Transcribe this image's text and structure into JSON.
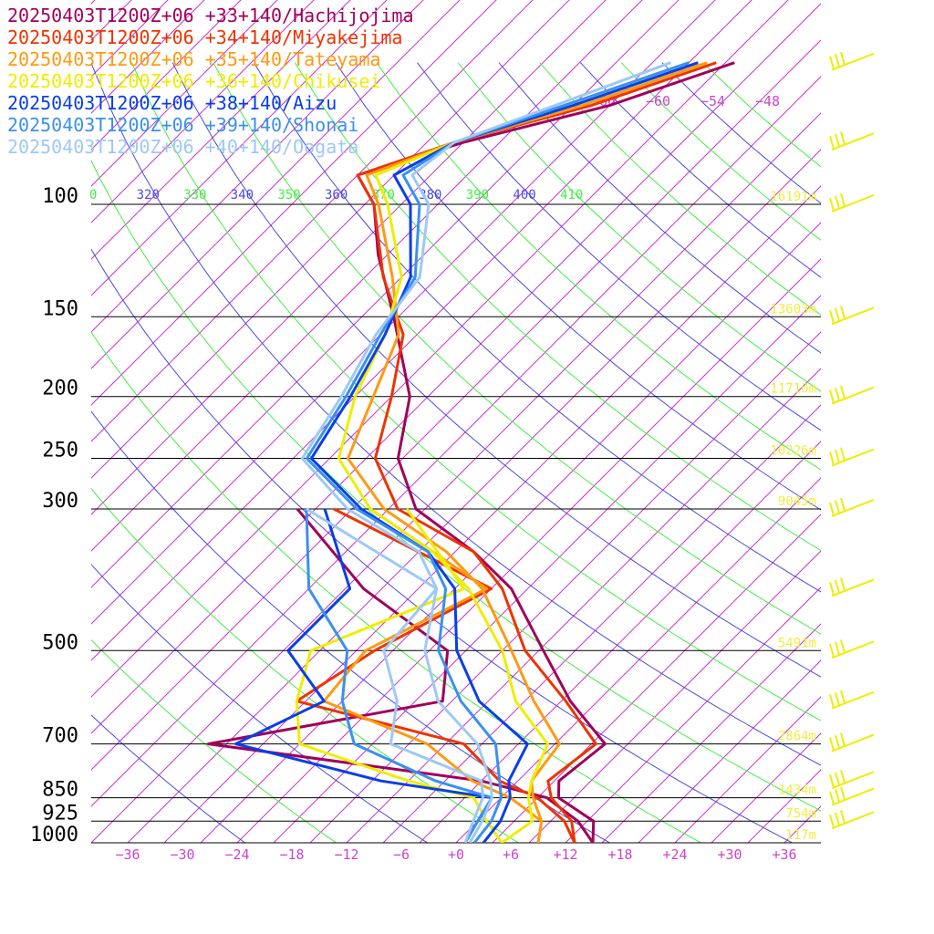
{
  "legend": [
    {
      "label": "20250403T1200Z+06 +33+140/Hachijojima",
      "color": "#a0005a"
    },
    {
      "label": "20250403T1200Z+06 +34+140/Miyakejima",
      "color": "#ee3300"
    },
    {
      "label": "20250403T1200Z+06 +35+140/Tateyama",
      "color": "#ff9a10"
    },
    {
      "label": "20250403T1200Z+06 +36+140/Chikusei",
      "color": "#eeee00"
    },
    {
      "label": "20250403T1200Z+06 +38+140/Aizu",
      "color": "#0a3ee8"
    },
    {
      "label": "20250403T1200Z+06 +39+140/Shonai",
      "color": "#3a90f0"
    },
    {
      "label": "20250403T1200Z+06 +40+140/Oogata",
      "color": "#9ec8f5"
    }
  ],
  "chart_data": {
    "type": "line",
    "title": "",
    "xlabel": "",
    "ylabel": "",
    "xlim": [
      -40,
      40
    ],
    "ylim": [
      1000,
      100
    ],
    "y_scale": "log-pressure",
    "skew": "temperature lines skewed 45 degrees",
    "pressure_levels": [
      {
        "p": 100,
        "label": "100",
        "height": "16191m"
      },
      {
        "p": 150,
        "label": "150",
        "height": "13603m"
      },
      {
        "p": 200,
        "label": "200",
        "height": "11710m"
      },
      {
        "p": 250,
        "label": "250",
        "height": "10226m"
      },
      {
        "p": 300,
        "label": "300",
        "height": "9045m"
      },
      {
        "p": 500,
        "label": "500",
        "height": "5491m"
      },
      {
        "p": 700,
        "label": "700",
        "height": "2864m"
      },
      {
        "p": 850,
        "label": "850",
        "height": "1434m"
      },
      {
        "p": 925,
        "label": "925",
        "height": "754m"
      },
      {
        "p": 1000,
        "label": "1000",
        "height": "117m"
      }
    ],
    "x_ticks": [
      -36,
      -30,
      -24,
      -18,
      -12,
      -6,
      0,
      6,
      12,
      18,
      24,
      30,
      36
    ],
    "x_tick_labels": [
      "−36",
      "−30",
      "−24",
      "−18",
      "−12",
      "−6",
      "+0",
      "+6",
      "+12",
      "+18",
      "+24",
      "+30",
      "+36"
    ],
    "theta_labels": [
      "0",
      "320",
      "330",
      "340",
      "350",
      "360",
      "370",
      "380",
      "390",
      "400",
      "410"
    ],
    "top_temp_labels": [
      "−66",
      "−60",
      "−54",
      "−48"
    ],
    "series": [
      {
        "name": "20250403T1200Z+06 +33+140/Hachijojima",
        "color": "#a0005a",
        "temperature": [
          [
            1000,
            15.0
          ],
          [
            925,
            12.7
          ],
          [
            850,
            6.3
          ],
          [
            800,
            4.5
          ],
          [
            700,
            5.5
          ],
          [
            600,
            -3.0
          ],
          [
            500,
            -11.5
          ],
          [
            400,
            -21.8
          ],
          [
            350,
            -30.0
          ],
          [
            300,
            -41.0
          ],
          [
            250,
            -48.5
          ],
          [
            200,
            -54.0
          ],
          [
            150,
            -64.5
          ],
          [
            120,
            -73.0
          ],
          [
            100,
            -79.0
          ],
          [
            90,
            -84.0
          ],
          [
            80,
            -76.0
          ],
          [
            70,
            -64.0
          ],
          [
            60,
            -55.0
          ]
        ],
        "dewpoint": [
          [
            1000,
            15.0
          ],
          [
            925,
            11.0
          ],
          [
            850,
            5.0
          ],
          [
            800,
            -4.0
          ],
          [
            700,
            -38.0
          ],
          [
            600,
            -17.0
          ],
          [
            500,
            -22.0
          ],
          [
            400,
            -38.0
          ],
          [
            300,
            -54.0
          ]
        ]
      },
      {
        "name": "20250403T1200Z+06 +34+140/Miyakejima",
        "color": "#ee3300",
        "temperature": [
          [
            1000,
            13.0
          ],
          [
            925,
            10.3
          ],
          [
            850,
            5.5
          ],
          [
            800,
            3.3
          ],
          [
            700,
            4.5
          ],
          [
            600,
            -3.5
          ],
          [
            500,
            -13.5
          ],
          [
            400,
            -22.8
          ],
          [
            350,
            -30.0
          ],
          [
            300,
            -43.0
          ],
          [
            250,
            -51.0
          ],
          [
            200,
            -56.0
          ],
          [
            160,
            -61.5
          ],
          [
            130,
            -70.0
          ],
          [
            100,
            -79.0
          ],
          [
            90,
            -84.0
          ],
          [
            80,
            -77.0
          ],
          [
            70,
            -66.0
          ],
          [
            60,
            -57.0
          ]
        ],
        "dewpoint": [
          [
            1000,
            13.0
          ],
          [
            925,
            9.5
          ],
          [
            850,
            4.0
          ],
          [
            800,
            -2.0
          ],
          [
            700,
            -10.0
          ],
          [
            600,
            -33.0
          ],
          [
            500,
            -30.0
          ],
          [
            400,
            -24.0
          ],
          [
            300,
            -50.0
          ]
        ]
      },
      {
        "name": "20250403T1200Z+06 +35+140/Tateyama",
        "color": "#ff9a10",
        "temperature": [
          [
            1000,
            9.0
          ],
          [
            925,
            7.0
          ],
          [
            850,
            3.5
          ],
          [
            800,
            1.5
          ],
          [
            700,
            0.5
          ],
          [
            600,
            -7.0
          ],
          [
            500,
            -15.0
          ],
          [
            400,
            -25.0
          ],
          [
            350,
            -33.0
          ],
          [
            300,
            -44.5
          ],
          [
            250,
            -54.0
          ],
          [
            200,
            -58.0
          ],
          [
            160,
            -62.0
          ],
          [
            130,
            -69.0
          ],
          [
            100,
            -78.5
          ],
          [
            90,
            -83.0
          ],
          [
            80,
            -77.0
          ],
          [
            70,
            -67.0
          ],
          [
            60,
            -58.0
          ]
        ],
        "dewpoint": [
          [
            1000,
            9.0
          ],
          [
            925,
            7.0
          ],
          [
            850,
            1.0
          ],
          [
            800,
            -5.0
          ],
          [
            700,
            -14.0
          ],
          [
            600,
            -30.0
          ],
          [
            500,
            -31.0
          ],
          [
            400,
            -24.5
          ],
          [
            300,
            -46.0
          ]
        ]
      },
      {
        "name": "20250403T1200Z+06 +36+140/Chikusei",
        "color": "#eeee00",
        "temperature": [
          [
            1000,
            5.0
          ],
          [
            925,
            6.0
          ],
          [
            850,
            3.0
          ],
          [
            800,
            1.5
          ],
          [
            700,
            -0.8
          ],
          [
            600,
            -9.0
          ],
          [
            500,
            -16.0
          ],
          [
            400,
            -26.5
          ],
          [
            350,
            -34.5
          ],
          [
            300,
            -46.0
          ],
          [
            250,
            -55.0
          ],
          [
            200,
            -60.0
          ],
          [
            160,
            -63.5
          ],
          [
            130,
            -68.0
          ],
          [
            100,
            -77.5
          ],
          [
            90,
            -82.0
          ],
          [
            80,
            -77.0
          ],
          [
            70,
            -68.0
          ],
          [
            60,
            -59.0
          ]
        ],
        "dewpoint": [
          [
            1000,
            5.0
          ],
          [
            925,
            1.0
          ],
          [
            850,
            -3.0
          ],
          [
            800,
            -12.0
          ],
          [
            700,
            -28.0
          ],
          [
            600,
            -33.0
          ],
          [
            500,
            -37.0
          ],
          [
            400,
            -27.0
          ],
          [
            300,
            -42.0
          ]
        ]
      },
      {
        "name": "20250403T1200Z+06 +38+140/Aizu",
        "color": "#0a3ee8",
        "temperature": [
          [
            1000,
            3.0
          ],
          [
            925,
            2.5
          ],
          [
            850,
            1.0
          ],
          [
            800,
            -1.0
          ],
          [
            700,
            -3.0
          ],
          [
            600,
            -13.0
          ],
          [
            500,
            -21.0
          ],
          [
            400,
            -28.0
          ],
          [
            350,
            -35.0
          ],
          [
            300,
            -47.0
          ],
          [
            250,
            -58.0
          ],
          [
            200,
            -60.5
          ],
          [
            160,
            -63.5
          ],
          [
            130,
            -67.0
          ],
          [
            100,
            -75.0
          ],
          [
            90,
            -80.0
          ],
          [
            80,
            -77.0
          ],
          [
            70,
            -68.0
          ],
          [
            60,
            -59.0
          ]
        ],
        "dewpoint": [
          [
            1000,
            1.0
          ],
          [
            925,
            0.0
          ],
          [
            850,
            -1.0
          ],
          [
            800,
            -15.0
          ],
          [
            700,
            -35.0
          ],
          [
            600,
            -30.0
          ],
          [
            500,
            -39.5
          ],
          [
            400,
            -39.5
          ],
          [
            300,
            -51.0
          ]
        ]
      },
      {
        "name": "20250403T1200Z+06 +39+140/Shonai",
        "color": "#3a90f0",
        "temperature": [
          [
            1000,
            2.0
          ],
          [
            925,
            1.5
          ],
          [
            850,
            0.0
          ],
          [
            800,
            -2.0
          ],
          [
            700,
            -6.5
          ],
          [
            600,
            -15.0
          ],
          [
            500,
            -23.0
          ],
          [
            400,
            -29.0
          ],
          [
            350,
            -35.0
          ],
          [
            300,
            -47.5
          ],
          [
            250,
            -58.5
          ],
          [
            200,
            -61.0
          ],
          [
            160,
            -64.0
          ],
          [
            130,
            -66.5
          ],
          [
            100,
            -74.0
          ],
          [
            90,
            -79.0
          ],
          [
            80,
            -77.0
          ],
          [
            70,
            -69.0
          ],
          [
            60,
            -60.0
          ]
        ],
        "dewpoint": [
          [
            1000,
            1.0
          ],
          [
            925,
            0.0
          ],
          [
            850,
            -1.0
          ],
          [
            800,
            -9.0
          ],
          [
            700,
            -22.0
          ],
          [
            600,
            -28.0
          ],
          [
            500,
            -33.0
          ],
          [
            400,
            -44.0
          ],
          [
            300,
            -53.0
          ]
        ]
      },
      {
        "name": "20250403T1200Z+06 +40+140/Oogata",
        "color": "#9ec8f5",
        "temperature": [
          [
            1000,
            1.5
          ],
          [
            925,
            0.5
          ],
          [
            850,
            -1.0
          ],
          [
            800,
            -3.0
          ],
          [
            700,
            -8.5
          ],
          [
            600,
            -17.5
          ],
          [
            500,
            -24.5
          ],
          [
            400,
            -30.0
          ],
          [
            350,
            -36.0
          ],
          [
            300,
            -48.5
          ],
          [
            250,
            -59.0
          ],
          [
            200,
            -61.5
          ],
          [
            160,
            -64.5
          ],
          [
            130,
            -66.0
          ],
          [
            100,
            -73.0
          ],
          [
            90,
            -78.0
          ],
          [
            80,
            -77.0
          ],
          [
            70,
            -70.0
          ],
          [
            60,
            -62.0
          ]
        ],
        "dewpoint": [
          [
            1000,
            1.0
          ],
          [
            925,
            -0.5
          ],
          [
            850,
            -2.0
          ],
          [
            800,
            -4.0
          ],
          [
            700,
            -18.0
          ],
          [
            600,
            -22.0
          ],
          [
            500,
            -29.0
          ],
          [
            400,
            -30.0
          ],
          [
            300,
            -53.0
          ]
        ]
      }
    ],
    "wind_barbs": {
      "color": "#eeee00",
      "levels": [
        60,
        80,
        100,
        150,
        200,
        250,
        300,
        400,
        500,
        600,
        700,
        800,
        850,
        925
      ]
    },
    "grid": true,
    "legend_position": "top-left"
  }
}
